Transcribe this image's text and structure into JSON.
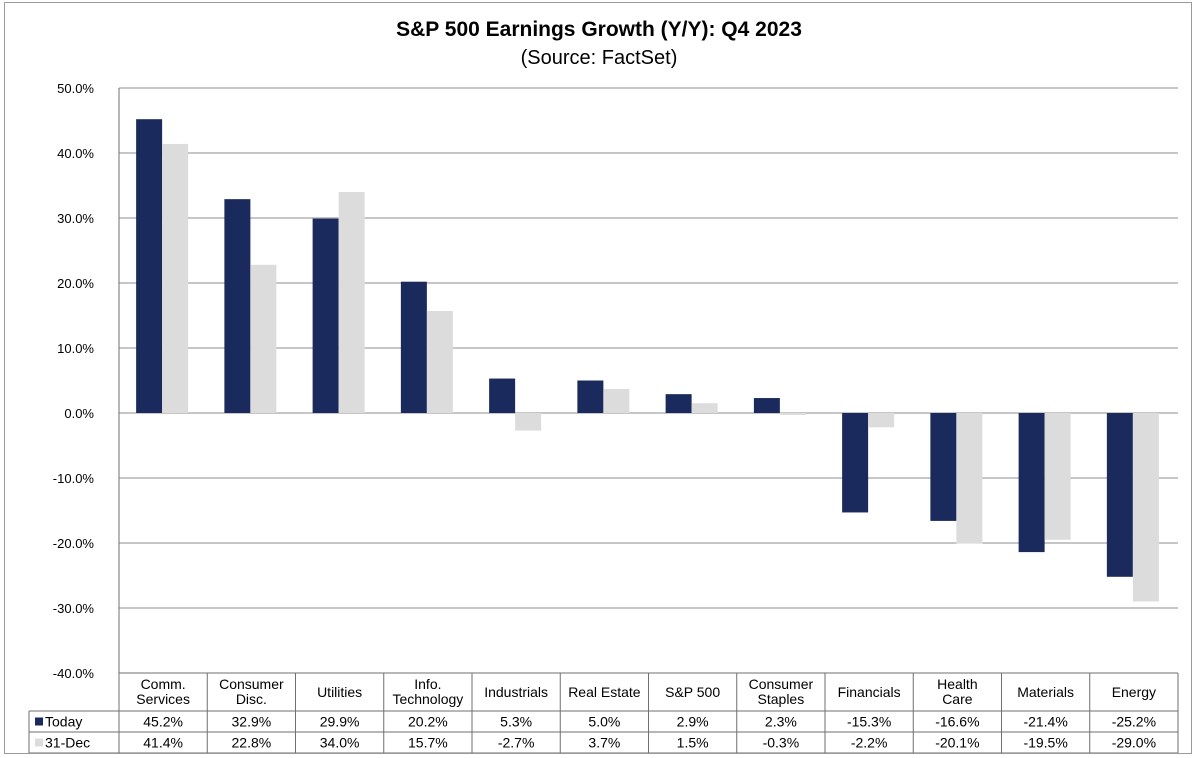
{
  "chart_data": {
    "type": "bar",
    "title": "S&P 500 Earnings Growth (Y/Y): Q4 2023",
    "subtitle": "(Source: FactSet)",
    "categories": [
      [
        "Comm.",
        "Services"
      ],
      [
        "Consumer",
        "Disc."
      ],
      [
        "Utilities"
      ],
      [
        "Info.",
        "Technology"
      ],
      [
        "Industrials"
      ],
      [
        "Real Estate"
      ],
      [
        "S&P 500"
      ],
      [
        "Consumer",
        "Staples"
      ],
      [
        "Financials"
      ],
      [
        "Health",
        "Care"
      ],
      [
        "Materials"
      ],
      [
        "Energy"
      ]
    ],
    "series": [
      {
        "name": "Today",
        "color": "#1a2a5c",
        "values": [
          45.2,
          32.9,
          29.9,
          20.2,
          5.3,
          5.0,
          2.9,
          2.3,
          -15.3,
          -16.6,
          -21.4,
          -25.2
        ],
        "labels": [
          "45.2%",
          "32.9%",
          "29.9%",
          "20.2%",
          "5.3%",
          "5.0%",
          "2.9%",
          "2.3%",
          "-15.3%",
          "-16.6%",
          "-21.4%",
          "-25.2%"
        ]
      },
      {
        "name": "31-Dec",
        "color": "#dcdcdc",
        "values": [
          41.4,
          22.8,
          34.0,
          15.7,
          -2.7,
          3.7,
          1.5,
          -0.3,
          -2.2,
          -20.1,
          -19.5,
          -29.0
        ],
        "labels": [
          "41.4%",
          "22.8%",
          "34.0%",
          "15.7%",
          "-2.7%",
          "3.7%",
          "1.5%",
          "-0.3%",
          "-2.2%",
          "-20.1%",
          "-19.5%",
          "-29.0%"
        ]
      }
    ],
    "ylim": [
      -40,
      50
    ],
    "yticks": [
      50,
      40,
      30,
      20,
      10,
      0,
      -10,
      -20,
      -30,
      -40
    ],
    "ytick_labels": [
      "50.0%",
      "40.0%",
      "30.0%",
      "20.0%",
      "10.0%",
      "0.0%",
      "-10.0%",
      "-20.0%",
      "-30.0%",
      "-40.0%"
    ],
    "grid": true,
    "legend": "data-table"
  }
}
